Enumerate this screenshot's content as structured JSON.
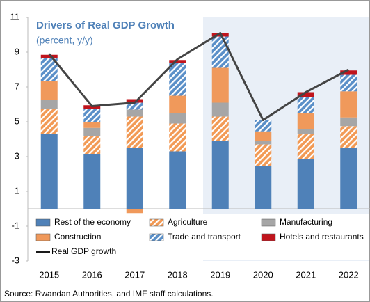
{
  "chart_data": {
    "type": "stacked_bar_line",
    "title": "Drivers of Real GDP Growth",
    "subtitle": "(percent, y/y)",
    "source": "Source: Rwandan Authorities, and IMF staff calculations.",
    "categories": [
      "2015",
      "2016",
      "2017",
      "2018",
      "2019",
      "2020",
      "2021",
      "2022"
    ],
    "series": [
      {
        "name": "Rest of the economy",
        "color": "#4f81b8",
        "pattern": "solid",
        "values": [
          4.3,
          3.15,
          3.5,
          3.3,
          3.9,
          2.45,
          2.85,
          3.5
        ]
      },
      {
        "name": "Agriculture",
        "color": "#f29a55",
        "pattern": "hatch",
        "values": [
          1.45,
          1.05,
          1.8,
          1.6,
          1.4,
          1.25,
          1.45,
          1.25
        ]
      },
      {
        "name": "Manufacturing",
        "color": "#a6a6a6",
        "pattern": "solid",
        "values": [
          0.5,
          0.45,
          0.4,
          0.6,
          0.8,
          0.2,
          0.3,
          0.5
        ]
      },
      {
        "name": "Construction",
        "color": "#f0995b",
        "pattern": "solid",
        "values": [
          1.1,
          0.35,
          -0.25,
          1.0,
          2.0,
          0.55,
          0.9,
          1.5
        ]
      },
      {
        "name": "Trade and transport",
        "color": "#5a8fc8",
        "pattern": "hatch",
        "values": [
          1.3,
          0.75,
          0.4,
          1.9,
          1.8,
          0.65,
          0.9,
          0.95
        ]
      },
      {
        "name": "Hotels and restaurants",
        "color": "#c0141c",
        "pattern": "solid",
        "values": [
          0.2,
          0.2,
          0.2,
          0.15,
          0.2,
          0,
          0.3,
          0.25
        ]
      }
    ],
    "line_series": {
      "name": "Real GDP growth",
      "color": "#1a1a1a",
      "values": [
        8.9,
        5.9,
        6.1,
        8.6,
        10.1,
        5.1,
        6.7,
        8.0
      ]
    },
    "ylim": [
      -3,
      11
    ],
    "yticks": [
      -3,
      -1,
      1,
      3,
      5,
      7,
      9,
      11
    ]
  }
}
